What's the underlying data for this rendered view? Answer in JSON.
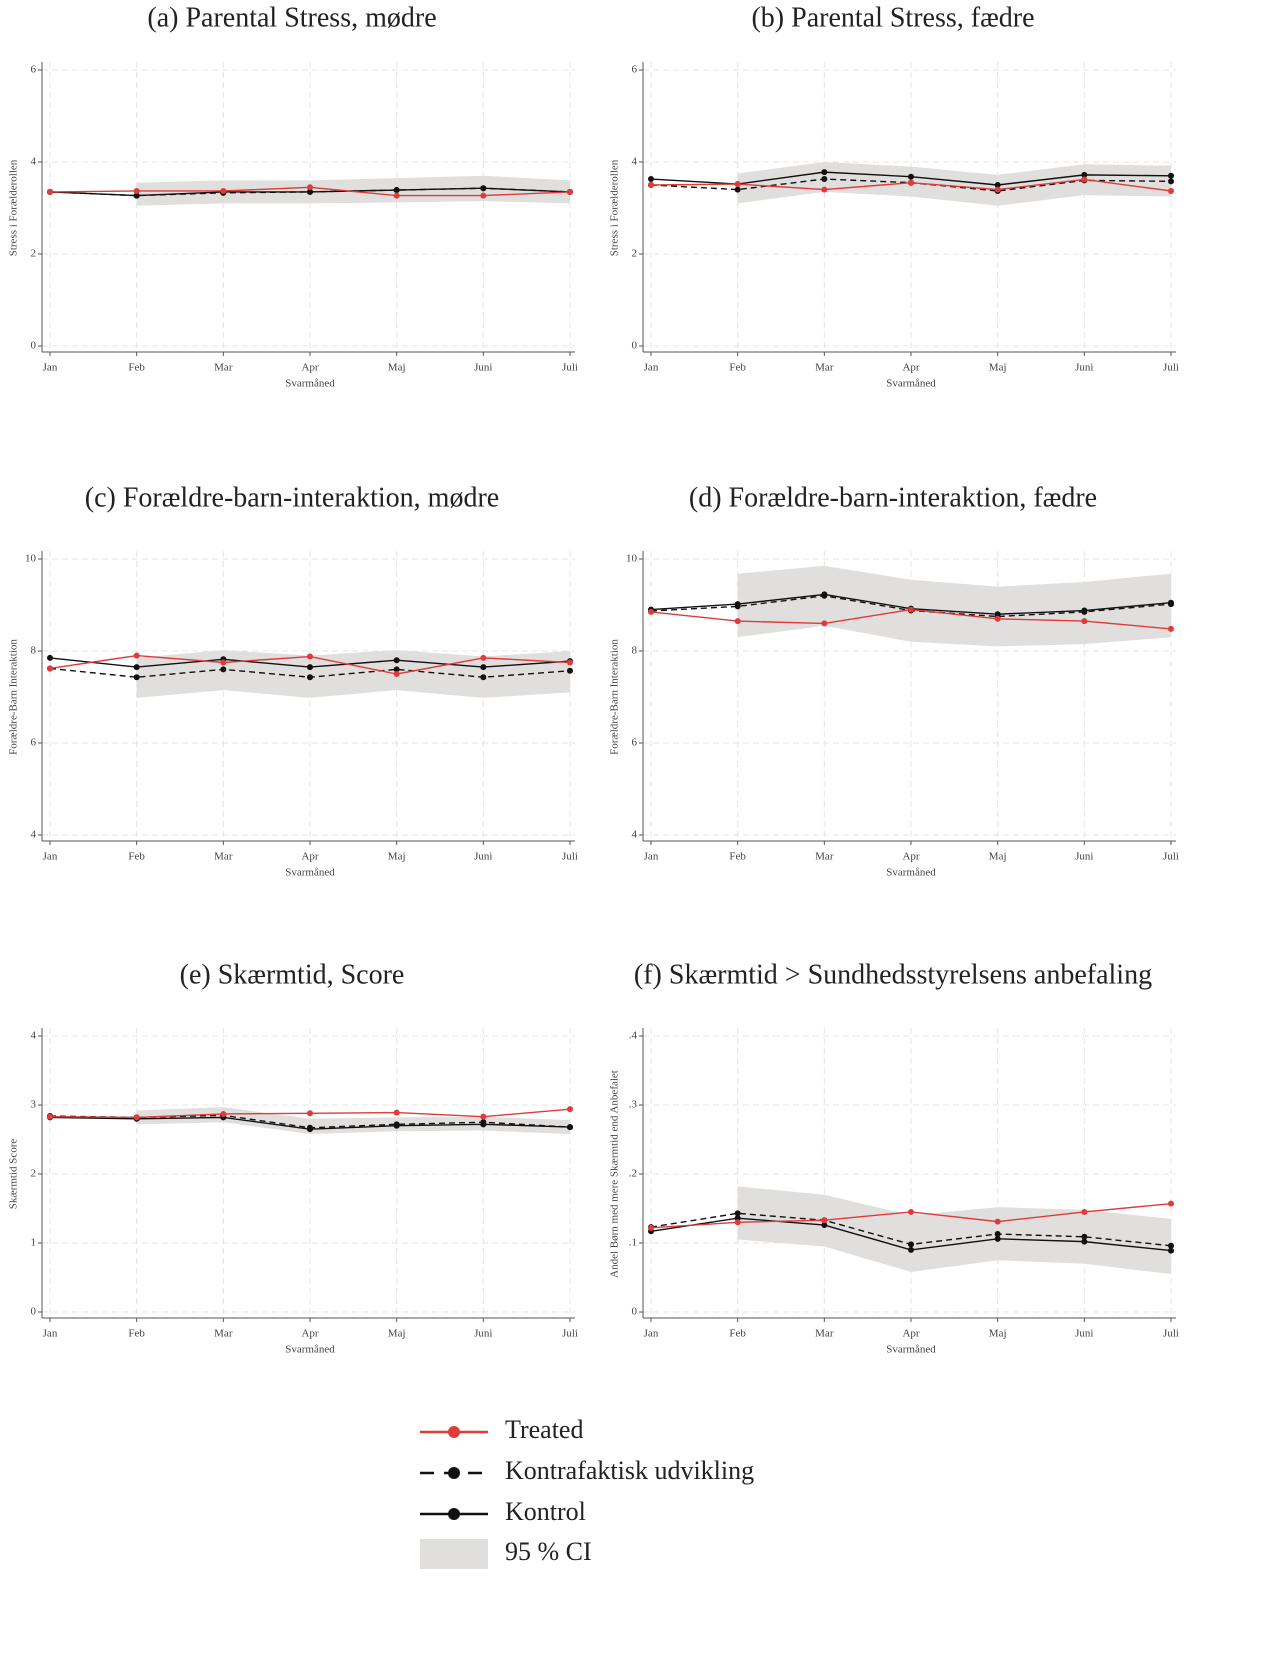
{
  "chart_data": [
    {
      "type": "line",
      "title": "(a) Parental Stress, mødre",
      "xlabel": "Svarmåned",
      "ylabel": "Stress i Forælderollen",
      "categories": [
        "Jan",
        "Feb",
        "Mar",
        "Apr",
        "Maj",
        "Juni",
        "Juli"
      ],
      "ylim": [
        0,
        6
      ],
      "yticks": [
        0,
        2,
        4,
        6
      ],
      "grid": true,
      "series": [
        {
          "values": [
            3.35,
            3.37,
            3.37,
            3.45,
            3.27,
            3.27,
            3.35
          ]
        },
        {
          "values": [
            3.35,
            3.27,
            3.33,
            3.35,
            3.39,
            3.43,
            3.35
          ]
        },
        {
          "values": [
            3.35,
            3.27,
            3.35,
            3.35,
            3.39,
            3.43,
            3.35
          ]
        }
      ],
      "ci": {
        "lower": [
          null,
          3.05,
          3.1,
          3.1,
          3.12,
          3.15,
          3.1
        ],
        "upper": [
          null,
          3.55,
          3.6,
          3.6,
          3.65,
          3.7,
          3.6
        ]
      }
    },
    {
      "type": "line",
      "title": "(b) Parental Stress, fædre",
      "xlabel": "Svarmåned",
      "ylabel": "Stress i Forælderollen",
      "categories": [
        "Jan",
        "Feb",
        "Mar",
        "Apr",
        "Maj",
        "Juni",
        "Juli"
      ],
      "ylim": [
        0,
        6
      ],
      "yticks": [
        0,
        2,
        4,
        6
      ],
      "grid": true,
      "series": [
        {
          "values": [
            3.5,
            3.52,
            3.4,
            3.55,
            3.4,
            3.62,
            3.37
          ]
        },
        {
          "values": [
            3.5,
            3.4,
            3.63,
            3.55,
            3.37,
            3.6,
            3.58
          ]
        },
        {
          "values": [
            3.63,
            3.52,
            3.78,
            3.68,
            3.5,
            3.72,
            3.7
          ]
        }
      ],
      "ci": {
        "lower": [
          null,
          3.1,
          3.35,
          3.25,
          3.05,
          3.28,
          3.25
        ],
        "upper": [
          null,
          3.75,
          4.0,
          3.9,
          3.72,
          3.95,
          3.92
        ]
      }
    },
    {
      "type": "line",
      "title": "(c) Forældre-barn-interaktion, mødre",
      "xlabel": "Svarmåned",
      "ylabel": "Forældre-Barn Interaktion",
      "categories": [
        "Jan",
        "Feb",
        "Mar",
        "Apr",
        "Maj",
        "Juni",
        "Juli"
      ],
      "ylim": [
        4,
        10
      ],
      "yticks": [
        4,
        6,
        8,
        10
      ],
      "grid": true,
      "series": [
        {
          "values": [
            7.62,
            7.9,
            7.75,
            7.88,
            7.5,
            7.85,
            7.75
          ]
        },
        {
          "values": [
            7.62,
            7.43,
            7.6,
            7.43,
            7.6,
            7.43,
            7.57
          ]
        },
        {
          "values": [
            7.85,
            7.65,
            7.82,
            7.65,
            7.8,
            7.65,
            7.78
          ]
        }
      ],
      "ci": {
        "lower": [
          null,
          6.98,
          7.15,
          6.98,
          7.15,
          6.98,
          7.1
        ],
        "upper": [
          null,
          7.85,
          8.02,
          7.9,
          8.02,
          7.88,
          8.0
        ]
      }
    },
    {
      "type": "line",
      "title": "(d) Forældre-barn-interaktion, fædre",
      "xlabel": "Svarmåned",
      "ylabel": "Forældre-Barn Interaktion",
      "categories": [
        "Jan",
        "Feb",
        "Mar",
        "Apr",
        "Maj",
        "Juni",
        "Juli"
      ],
      "ylim": [
        4,
        10
      ],
      "yticks": [
        4,
        6,
        8,
        10
      ],
      "grid": true,
      "series": [
        {
          "values": [
            8.85,
            8.65,
            8.6,
            8.9,
            8.7,
            8.65,
            8.48
          ]
        },
        {
          "values": [
            8.87,
            8.97,
            9.2,
            8.88,
            8.75,
            8.85,
            9.02
          ]
        },
        {
          "values": [
            8.9,
            9.02,
            9.23,
            8.92,
            8.8,
            8.88,
            9.05
          ]
        }
      ],
      "ci": {
        "lower": [
          null,
          8.3,
          8.55,
          8.2,
          8.1,
          8.15,
          8.3
        ],
        "upper": [
          null,
          9.68,
          9.85,
          9.55,
          9.4,
          9.5,
          9.68
        ]
      }
    },
    {
      "type": "line",
      "title": "(e) Skærmtid, Score",
      "xlabel": "Svarmåned",
      "ylabel": "Skærmtid Score",
      "categories": [
        "Jan",
        "Feb",
        "Mar",
        "Apr",
        "Maj",
        "Juni",
        "Juli"
      ],
      "ylim": [
        0,
        4
      ],
      "yticks": [
        0,
        1,
        2,
        3,
        4
      ],
      "grid": true,
      "series": [
        {
          "values": [
            2.83,
            2.82,
            2.87,
            2.88,
            2.89,
            2.83,
            2.94
          ]
        },
        {
          "values": [
            2.84,
            2.82,
            2.85,
            2.67,
            2.72,
            2.75,
            2.68
          ]
        },
        {
          "values": [
            2.82,
            2.8,
            2.82,
            2.65,
            2.7,
            2.72,
            2.68
          ]
        }
      ],
      "ci": {
        "lower": [
          null,
          2.72,
          2.75,
          2.58,
          2.62,
          2.63,
          2.58
        ],
        "upper": [
          null,
          2.92,
          2.97,
          2.8,
          2.82,
          2.83,
          2.78
        ]
      }
    },
    {
      "type": "line",
      "title": "(f) Skærmtid > Sundhedsstyrelsens anbefaling",
      "xlabel": "Svarmåned",
      "ylabel": "Andel Børn med mere Skærmtid end Anbefalet",
      "categories": [
        "Jan",
        "Feb",
        "Mar",
        "Apr",
        "Maj",
        "Juni",
        "Juli"
      ],
      "ylim": [
        0,
        0.4
      ],
      "yticks": [
        0,
        {
          "value": 0.1,
          "label": ".1"
        },
        {
          "value": 0.2,
          "label": ".2"
        },
        {
          "value": 0.3,
          "label": ".3"
        },
        {
          "value": 0.4,
          "label": ".4"
        }
      ],
      "grid": true,
      "series": [
        {
          "values": [
            0.122,
            0.13,
            0.133,
            0.145,
            0.131,
            0.145,
            0.157
          ]
        },
        {
          "values": [
            0.123,
            0.143,
            0.133,
            0.098,
            0.113,
            0.109,
            0.096
          ]
        },
        {
          "values": [
            0.117,
            0.136,
            0.126,
            0.09,
            0.106,
            0.102,
            0.089
          ]
        }
      ],
      "ci": {
        "lower": [
          null,
          0.105,
          0.095,
          0.058,
          0.075,
          0.07,
          0.055
        ],
        "upper": [
          null,
          0.182,
          0.17,
          0.14,
          0.152,
          0.148,
          0.135
        ]
      }
    }
  ],
  "legend": [
    {
      "name": "Treated",
      "color": "#e03a3a",
      "dashed": false
    },
    {
      "name": "Kontrafaktisk udvikling",
      "color": "#111111",
      "dashed": true
    },
    {
      "name": "Kontrol",
      "color": "#111111",
      "dashed": false
    },
    {
      "name": "95 % CI",
      "color": "#e1dfdd"
    }
  ]
}
